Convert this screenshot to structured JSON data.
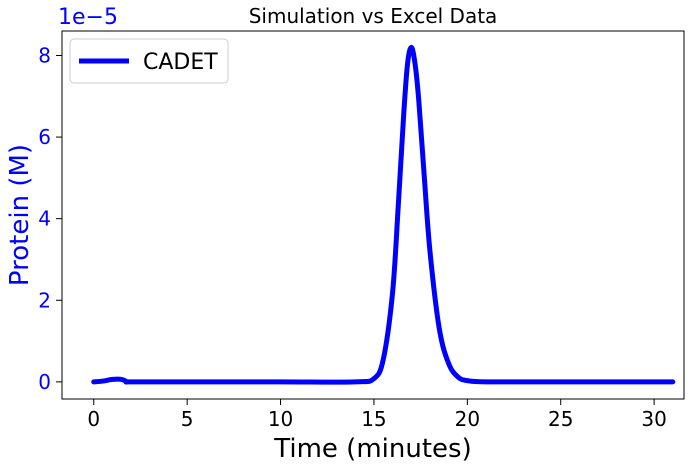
{
  "chart_data": {
    "type": "line",
    "title": "Simulation vs Excel Data",
    "xlabel": "Time (minutes)",
    "ylabel": "Protein (M)",
    "y_offset_label": "1e−5",
    "xlim": [
      -1.7,
      31.6
    ],
    "ylim": [
      -0.42,
      8.6
    ],
    "x_ticks": [
      0,
      5,
      10,
      15,
      20,
      25,
      30
    ],
    "x_tick_labels": [
      "0",
      "5",
      "10",
      "15",
      "20",
      "25",
      "30"
    ],
    "y_ticks": [
      0,
      2,
      4,
      6,
      8
    ],
    "y_tick_labels": [
      "0",
      "2",
      "4",
      "6",
      "8"
    ],
    "grid": false,
    "legend_position": "top-left",
    "y_unit_scale": "1e-5",
    "series": [
      {
        "name": "CADET",
        "color": "#0000ff",
        "x": [
          0,
          0.5,
          1.0,
          1.5,
          1.8,
          2,
          5,
          10,
          14,
          15,
          15.5,
          16,
          16.3,
          16.6,
          16.8,
          17.0,
          17.2,
          17.4,
          17.7,
          18.0,
          18.5,
          19.0,
          19.5,
          20,
          21,
          25,
          31
        ],
        "y": [
          0,
          0.02,
          0.06,
          0.06,
          0.0,
          0,
          0,
          0,
          0,
          0.08,
          0.55,
          2.2,
          4.3,
          6.6,
          7.8,
          8.2,
          7.8,
          6.9,
          5.0,
          3.2,
          1.3,
          0.45,
          0.12,
          0.03,
          0,
          0,
          0
        ]
      }
    ]
  }
}
